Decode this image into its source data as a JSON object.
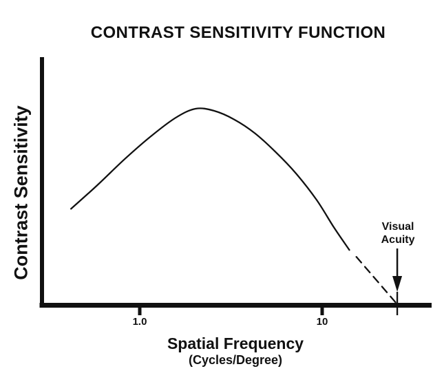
{
  "title": "CONTRAST SENSITIVITY FUNCTION",
  "y_axis": {
    "label": "Contrast Sensitivity"
  },
  "x_axis": {
    "label": "Spatial Frequency",
    "sublabel": "(Cycles/Degree)",
    "ticks": [
      {
        "label": "1.0",
        "value": 1.0
      },
      {
        "label": "10",
        "value": 10
      }
    ]
  },
  "annotation": {
    "line1": "Visual",
    "line2": "Acuity",
    "x_value": 25.8
  },
  "colors": {
    "ink": "#111111",
    "background": "#ffffff"
  },
  "chart_data": {
    "type": "line",
    "title": "CONTRAST SENSITIVITY FUNCTION",
    "xlabel": "Spatial Frequency (Cycles/Degree)",
    "ylabel": "Contrast Sensitivity",
    "x_scale": "log10",
    "x_ticks": [
      1.0,
      10
    ],
    "y_axis_numeric_labels": false,
    "ylim_normalized": [
      0,
      1
    ],
    "grid": false,
    "legend": "none",
    "series": [
      {
        "name": "contrast sensitivity function (measured, solid)",
        "style": "solid",
        "x_cycles_per_degree": [
          0.42,
          0.585,
          0.83,
          1.17,
          1.58,
          2.02,
          2.55,
          3.3,
          4.28,
          5.55,
          7.19,
          9.33,
          11.6,
          14.1
        ],
        "y_relative_sensitivity": [
          0.49,
          0.61,
          0.745,
          0.865,
          0.955,
          1.0,
          0.99,
          0.945,
          0.875,
          0.78,
          0.67,
          0.535,
          0.395,
          0.28
        ]
      },
      {
        "name": "extrapolation to acuity limit (dashed)",
        "style": "dashed",
        "x_cycles_per_degree": [
          15.4,
          25.7
        ],
        "y_relative_sensitivity": [
          0.245,
          0.005
        ]
      }
    ],
    "annotations": [
      {
        "text": "Visual Acuity",
        "x_cycles_per_degree": 25.8,
        "marker": "down-arrow-and-tick-on-x-axis"
      }
    ]
  }
}
